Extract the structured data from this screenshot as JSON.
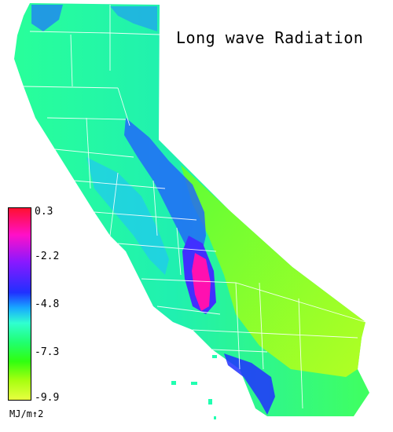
{
  "title": "Long wave Radiation",
  "legend": {
    "ticks": [
      "0.3",
      "-2.2",
      "-4.8",
      "-7.3",
      "-9.9"
    ],
    "unit": "MJ/m↑2"
  },
  "colors": {
    "max": "#ff1030",
    "high": "#ff10c8",
    "mid_high": "#2030ff",
    "mid": "#18a8ff",
    "mid_low": "#20ff70",
    "low": "#e8ff40",
    "boundary": "#ffffff"
  }
}
